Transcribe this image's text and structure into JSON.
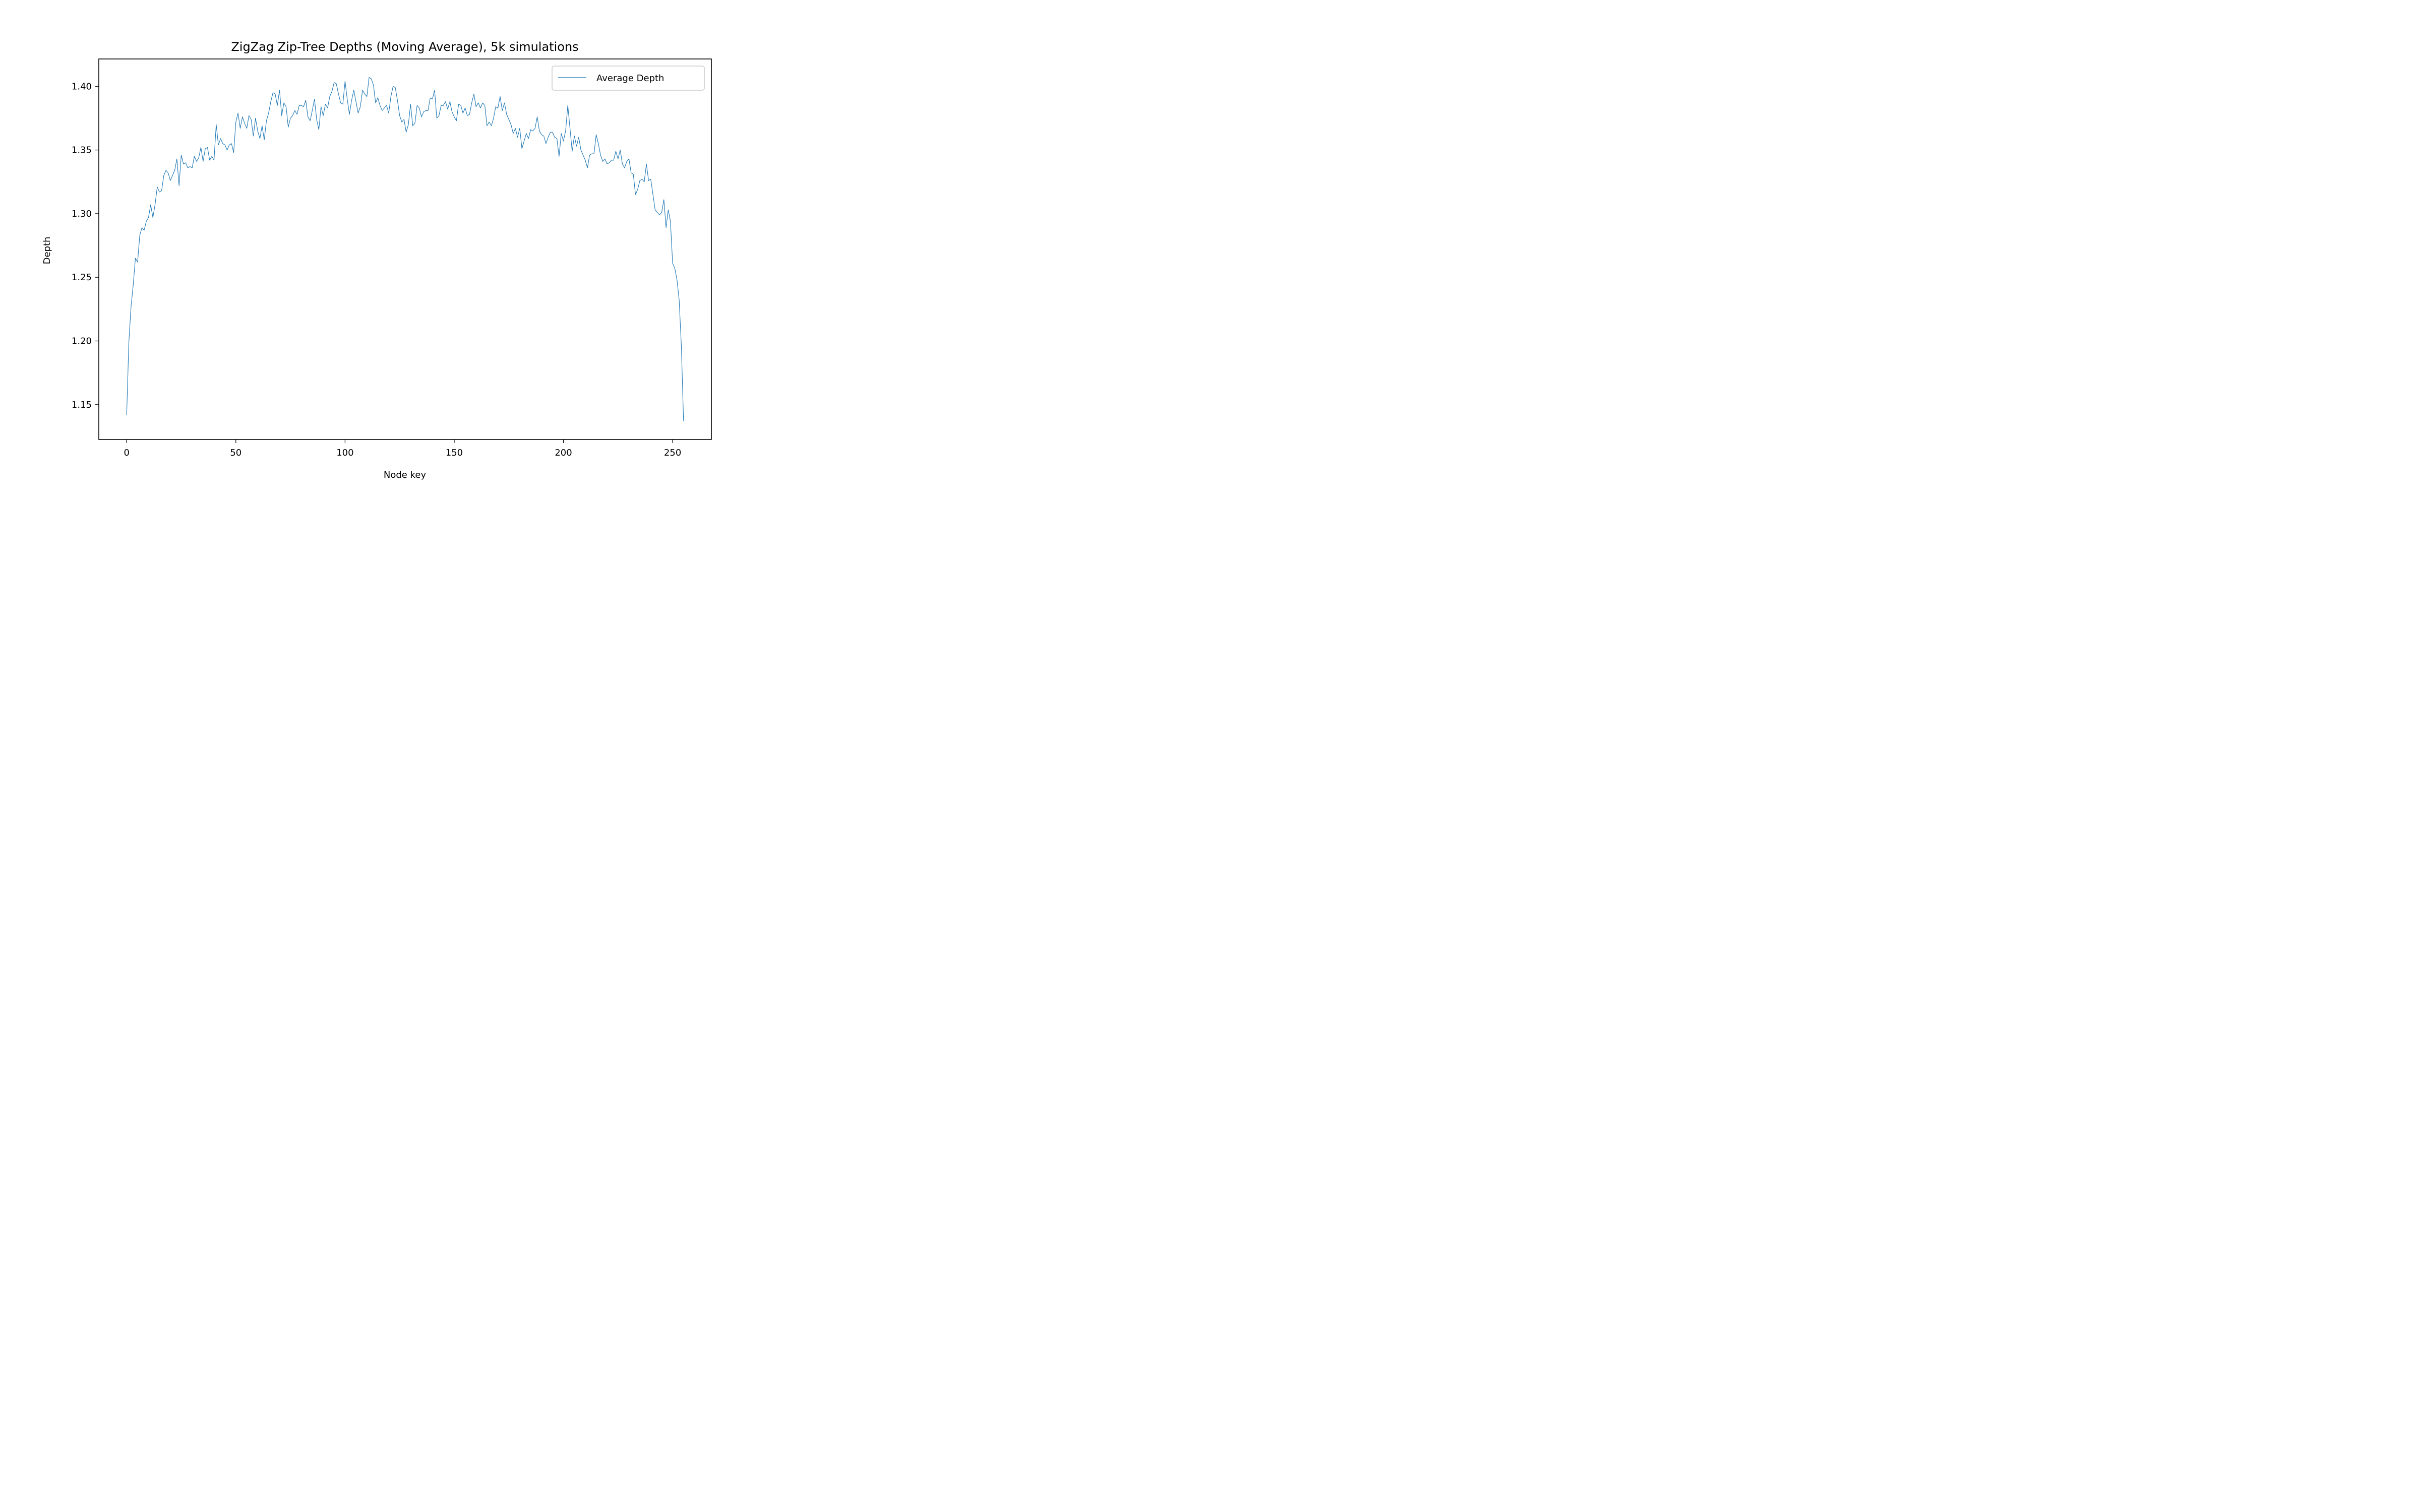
{
  "chart_data": {
    "type": "line",
    "title": "ZigZag Zip-Tree Depths (Moving Average), 5k simulations",
    "xlabel": "Node key",
    "ylabel": "Depth",
    "xlim": [
      -12.75,
      267.75
    ],
    "ylim": [
      1.1226,
      1.4215
    ],
    "xticks": [
      "0",
      "50",
      "100",
      "150",
      "200",
      "250"
    ],
    "yticks": [
      "1.15",
      "1.20",
      "1.25",
      "1.30",
      "1.35",
      "1.40"
    ],
    "grid": false,
    "legend_position": "top-right",
    "series": [
      {
        "name": "Average Depth",
        "color": "#1f77b4",
        "x_start": 0,
        "x_step": 1,
        "values": [
          1.142,
          1.199,
          1.227,
          1.244,
          1.265,
          1.262,
          1.283,
          1.289,
          1.287,
          1.294,
          1.297,
          1.307,
          1.297,
          1.307,
          1.321,
          1.317,
          1.318,
          1.33,
          1.334,
          1.332,
          1.326,
          1.33,
          1.334,
          1.343,
          1.322,
          1.346,
          1.339,
          1.34,
          1.336,
          1.337,
          1.336,
          1.345,
          1.341,
          1.344,
          1.352,
          1.341,
          1.351,
          1.352,
          1.342,
          1.345,
          1.342,
          1.37,
          1.354,
          1.359,
          1.355,
          1.354,
          1.35,
          1.354,
          1.355,
          1.348,
          1.372,
          1.379,
          1.367,
          1.376,
          1.371,
          1.367,
          1.377,
          1.374,
          1.361,
          1.375,
          1.365,
          1.359,
          1.369,
          1.358,
          1.373,
          1.379,
          1.388,
          1.395,
          1.394,
          1.385,
          1.397,
          1.377,
          1.387,
          1.384,
          1.368,
          1.375,
          1.377,
          1.381,
          1.378,
          1.385,
          1.385,
          1.384,
          1.389,
          1.376,
          1.373,
          1.381,
          1.39,
          1.374,
          1.366,
          1.384,
          1.377,
          1.386,
          1.383,
          1.392,
          1.396,
          1.403,
          1.402,
          1.394,
          1.387,
          1.386,
          1.404,
          1.39,
          1.378,
          1.389,
          1.397,
          1.388,
          1.379,
          1.384,
          1.397,
          1.394,
          1.392,
          1.407,
          1.406,
          1.401,
          1.387,
          1.391,
          1.385,
          1.381,
          1.383,
          1.385,
          1.379,
          1.392,
          1.4,
          1.399,
          1.389,
          1.377,
          1.372,
          1.374,
          1.364,
          1.37,
          1.386,
          1.369,
          1.371,
          1.385,
          1.383,
          1.376,
          1.38,
          1.381,
          1.381,
          1.391,
          1.39,
          1.397,
          1.375,
          1.377,
          1.385,
          1.385,
          1.388,
          1.382,
          1.388,
          1.38,
          1.376,
          1.373,
          1.386,
          1.385,
          1.379,
          1.383,
          1.377,
          1.378,
          1.387,
          1.394,
          1.384,
          1.387,
          1.383,
          1.387,
          1.385,
          1.369,
          1.372,
          1.369,
          1.375,
          1.384,
          1.383,
          1.392,
          1.381,
          1.387,
          1.378,
          1.374,
          1.37,
          1.363,
          1.367,
          1.36,
          1.367,
          1.351,
          1.357,
          1.363,
          1.359,
          1.366,
          1.365,
          1.367,
          1.376,
          1.365,
          1.362,
          1.361,
          1.355,
          1.36,
          1.364,
          1.364,
          1.36,
          1.359,
          1.345,
          1.363,
          1.357,
          1.365,
          1.385,
          1.367,
          1.349,
          1.361,
          1.353,
          1.36,
          1.35,
          1.346,
          1.342,
          1.336,
          1.346,
          1.347,
          1.347,
          1.362,
          1.355,
          1.346,
          1.341,
          1.343,
          1.339,
          1.34,
          1.342,
          1.342,
          1.349,
          1.343,
          1.35,
          1.339,
          1.336,
          1.341,
          1.343,
          1.332,
          1.331,
          1.315,
          1.319,
          1.326,
          1.327,
          1.325,
          1.339,
          1.326,
          1.327,
          1.315,
          1.303,
          1.301,
          1.299,
          1.301,
          1.311,
          1.289,
          1.303,
          1.294,
          1.261,
          1.257,
          1.248,
          1.232,
          1.196,
          1.137
        ]
      }
    ]
  }
}
